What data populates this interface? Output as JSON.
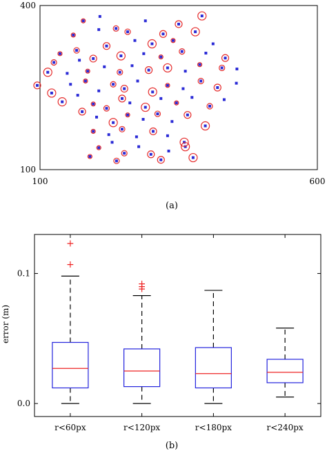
{
  "chart_data": [
    {
      "type": "scatter",
      "caption": "(a)",
      "xlim": [
        100,
        600
      ],
      "ylim": [
        100,
        400
      ],
      "x_ticks": [
        "100",
        "600"
      ],
      "y_ticks": [
        "400",
        "100"
      ],
      "grid": false,
      "series": [
        {
          "marker": "dot",
          "color": "#2b2bd6",
          "points": [
            [
              178,
              372
            ],
            [
              208,
              380
            ],
            [
              237,
              358
            ],
            [
              290,
              372
            ],
            [
              350,
              366
            ],
            [
              392,
              381
            ],
            [
              160,
              346
            ],
            [
              206,
              356
            ],
            [
              258,
              352
            ],
            [
              322,
              348
            ],
            [
              380,
              352
            ],
            [
              136,
              312
            ],
            [
              166,
              318
            ],
            [
              220,
              326
            ],
            [
              271,
              336
            ],
            [
              302,
              330
            ],
            [
              340,
              336
            ],
            [
              412,
              330
            ],
            [
              125,
              296
            ],
            [
              171,
              300
            ],
            [
              196,
              303
            ],
            [
              246,
              308
            ],
            [
              287,
              312
            ],
            [
              318,
              306
            ],
            [
              356,
              316
            ],
            [
              399,
              313
            ],
            [
              434,
              304
            ],
            [
              114,
              278
            ],
            [
              149,
              276
            ],
            [
              186,
              280
            ],
            [
              216,
              288
            ],
            [
              244,
              278
            ],
            [
              266,
              290
            ],
            [
              296,
              282
            ],
            [
              330,
              286
            ],
            [
              362,
              280
            ],
            [
              388,
              292
            ],
            [
              428,
              286
            ],
            [
              455,
              284
            ],
            [
              95,
              254
            ],
            [
              121,
              240
            ],
            [
              155,
              256
            ],
            [
              182,
              262
            ],
            [
              206,
              244
            ],
            [
              232,
              256
            ],
            [
              252,
              248
            ],
            [
              276,
              262
            ],
            [
              303,
              242
            ],
            [
              330,
              254
            ],
            [
              358,
              248
            ],
            [
              390,
              262
            ],
            [
              420,
              250
            ],
            [
              454,
              258
            ],
            [
              140,
              224
            ],
            [
              168,
              236
            ],
            [
              196,
              220
            ],
            [
              220,
              212
            ],
            [
              248,
              230
            ],
            [
              262,
              222
            ],
            [
              290,
              214
            ],
            [
              318,
              230
            ],
            [
              346,
              222
            ],
            [
              374,
              232
            ],
            [
              406,
              216
            ],
            [
              432,
              228
            ],
            [
              176,
              206
            ],
            [
              202,
              196
            ],
            [
              232,
              186
            ],
            [
              258,
              200
            ],
            [
              286,
              192
            ],
            [
              312,
              202
            ],
            [
              338,
              188
            ],
            [
              366,
              200
            ],
            [
              398,
              180
            ],
            [
              196,
              170
            ],
            [
              224,
              164
            ],
            [
              248,
              174
            ],
            [
              274,
              160
            ],
            [
              304,
              170
            ],
            [
              330,
              162
            ],
            [
              360,
              150
            ],
            [
              206,
              140
            ],
            [
              230,
              150
            ],
            [
              252,
              130
            ],
            [
              278,
              142
            ],
            [
              300,
              128
            ],
            [
              332,
              134
            ],
            [
              362,
              142
            ],
            [
              190,
              124
            ],
            [
              238,
              116
            ],
            [
              318,
              118
            ],
            [
              376,
              122
            ]
          ]
        },
        {
          "marker": "circle",
          "color": "#e52a2a",
          "points": [
            [
              178,
              372
            ],
            [
              237,
              358
            ],
            [
              350,
              366
            ],
            [
              392,
              381
            ],
            [
              160,
              346
            ],
            [
              258,
              352
            ],
            [
              322,
              348
            ],
            [
              380,
              352
            ],
            [
              136,
              312
            ],
            [
              166,
              318
            ],
            [
              220,
              326
            ],
            [
              302,
              330
            ],
            [
              340,
              336
            ],
            [
              125,
              296
            ],
            [
              196,
              303
            ],
            [
              246,
              308
            ],
            [
              318,
              306
            ],
            [
              356,
              316
            ],
            [
              434,
              304
            ],
            [
              114,
              278
            ],
            [
              186,
              280
            ],
            [
              244,
              278
            ],
            [
              296,
              282
            ],
            [
              330,
              286
            ],
            [
              388,
              292
            ],
            [
              428,
              286
            ],
            [
              95,
              254
            ],
            [
              121,
              240
            ],
            [
              182,
              262
            ],
            [
              232,
              256
            ],
            [
              252,
              248
            ],
            [
              303,
              242
            ],
            [
              330,
              254
            ],
            [
              390,
              262
            ],
            [
              420,
              250
            ],
            [
              140,
              224
            ],
            [
              196,
              220
            ],
            [
              220,
              212
            ],
            [
              248,
              230
            ],
            [
              290,
              214
            ],
            [
              346,
              222
            ],
            [
              406,
              216
            ],
            [
              176,
              206
            ],
            [
              232,
              186
            ],
            [
              258,
              200
            ],
            [
              312,
              202
            ],
            [
              366,
              200
            ],
            [
              398,
              180
            ],
            [
              196,
              170
            ],
            [
              248,
              174
            ],
            [
              304,
              170
            ],
            [
              360,
              150
            ],
            [
              206,
              140
            ],
            [
              252,
              130
            ],
            [
              300,
              128
            ],
            [
              362,
              142
            ],
            [
              190,
              124
            ],
            [
              238,
              116
            ],
            [
              318,
              118
            ],
            [
              376,
              122
            ]
          ]
        }
      ]
    },
    {
      "type": "box",
      "caption": "(b)",
      "ylabel": "error (m)",
      "ylim": [
        -0.01,
        0.13
      ],
      "y_ticks": [
        0.0,
        0.1
      ],
      "y_tick_labels": [
        "0.0",
        "0.1"
      ],
      "categories": [
        "r<60px",
        "r<120px",
        "r<180px",
        "r<240px"
      ],
      "boxes": [
        {
          "whisker_low": 0.0,
          "q1": 0.012,
          "median": 0.027,
          "q3": 0.047,
          "whisker_high": 0.098,
          "outliers": [
            0.107,
            0.123
          ]
        },
        {
          "whisker_low": 0.0,
          "q1": 0.013,
          "median": 0.025,
          "q3": 0.042,
          "whisker_high": 0.083,
          "outliers": [
            0.088,
            0.09,
            0.092
          ]
        },
        {
          "whisker_low": 0.0,
          "q1": 0.012,
          "median": 0.023,
          "q3": 0.043,
          "whisker_high": 0.087,
          "outliers": []
        },
        {
          "whisker_low": 0.005,
          "q1": 0.016,
          "median": 0.024,
          "q3": 0.034,
          "whisker_high": 0.058,
          "outliers": []
        }
      ],
      "box_color": "#2222dd",
      "median_color": "#ee2222",
      "outlier_color": "#ee2222",
      "outlier_marker": "+"
    }
  ]
}
